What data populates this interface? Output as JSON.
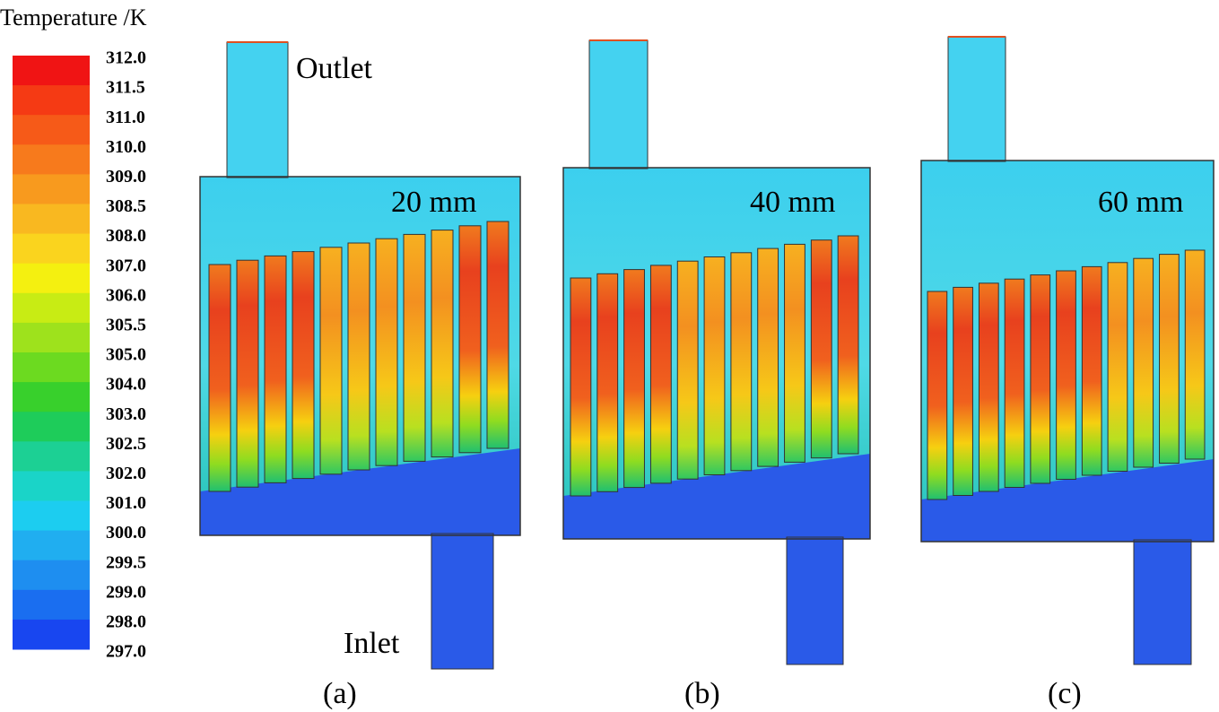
{
  "legend": {
    "title": "Temperature /K",
    "labels": [
      "312.0",
      "311.5",
      "311.0",
      "310.0",
      "309.0",
      "308.5",
      "308.0",
      "307.0",
      "306.0",
      "305.5",
      "305.0",
      "304.0",
      "303.0",
      "302.5",
      "302.0",
      "301.0",
      "300.0",
      "299.5",
      "299.0",
      "298.0",
      "297.0"
    ]
  },
  "annotations": {
    "outlet": "Outlet",
    "inlet": "Inlet"
  },
  "panels": [
    {
      "spacing": "20 mm",
      "label": "(a)"
    },
    {
      "spacing": "40 mm",
      "label": "(b)"
    },
    {
      "spacing": "60 mm",
      "label": "(c)"
    }
  ]
}
